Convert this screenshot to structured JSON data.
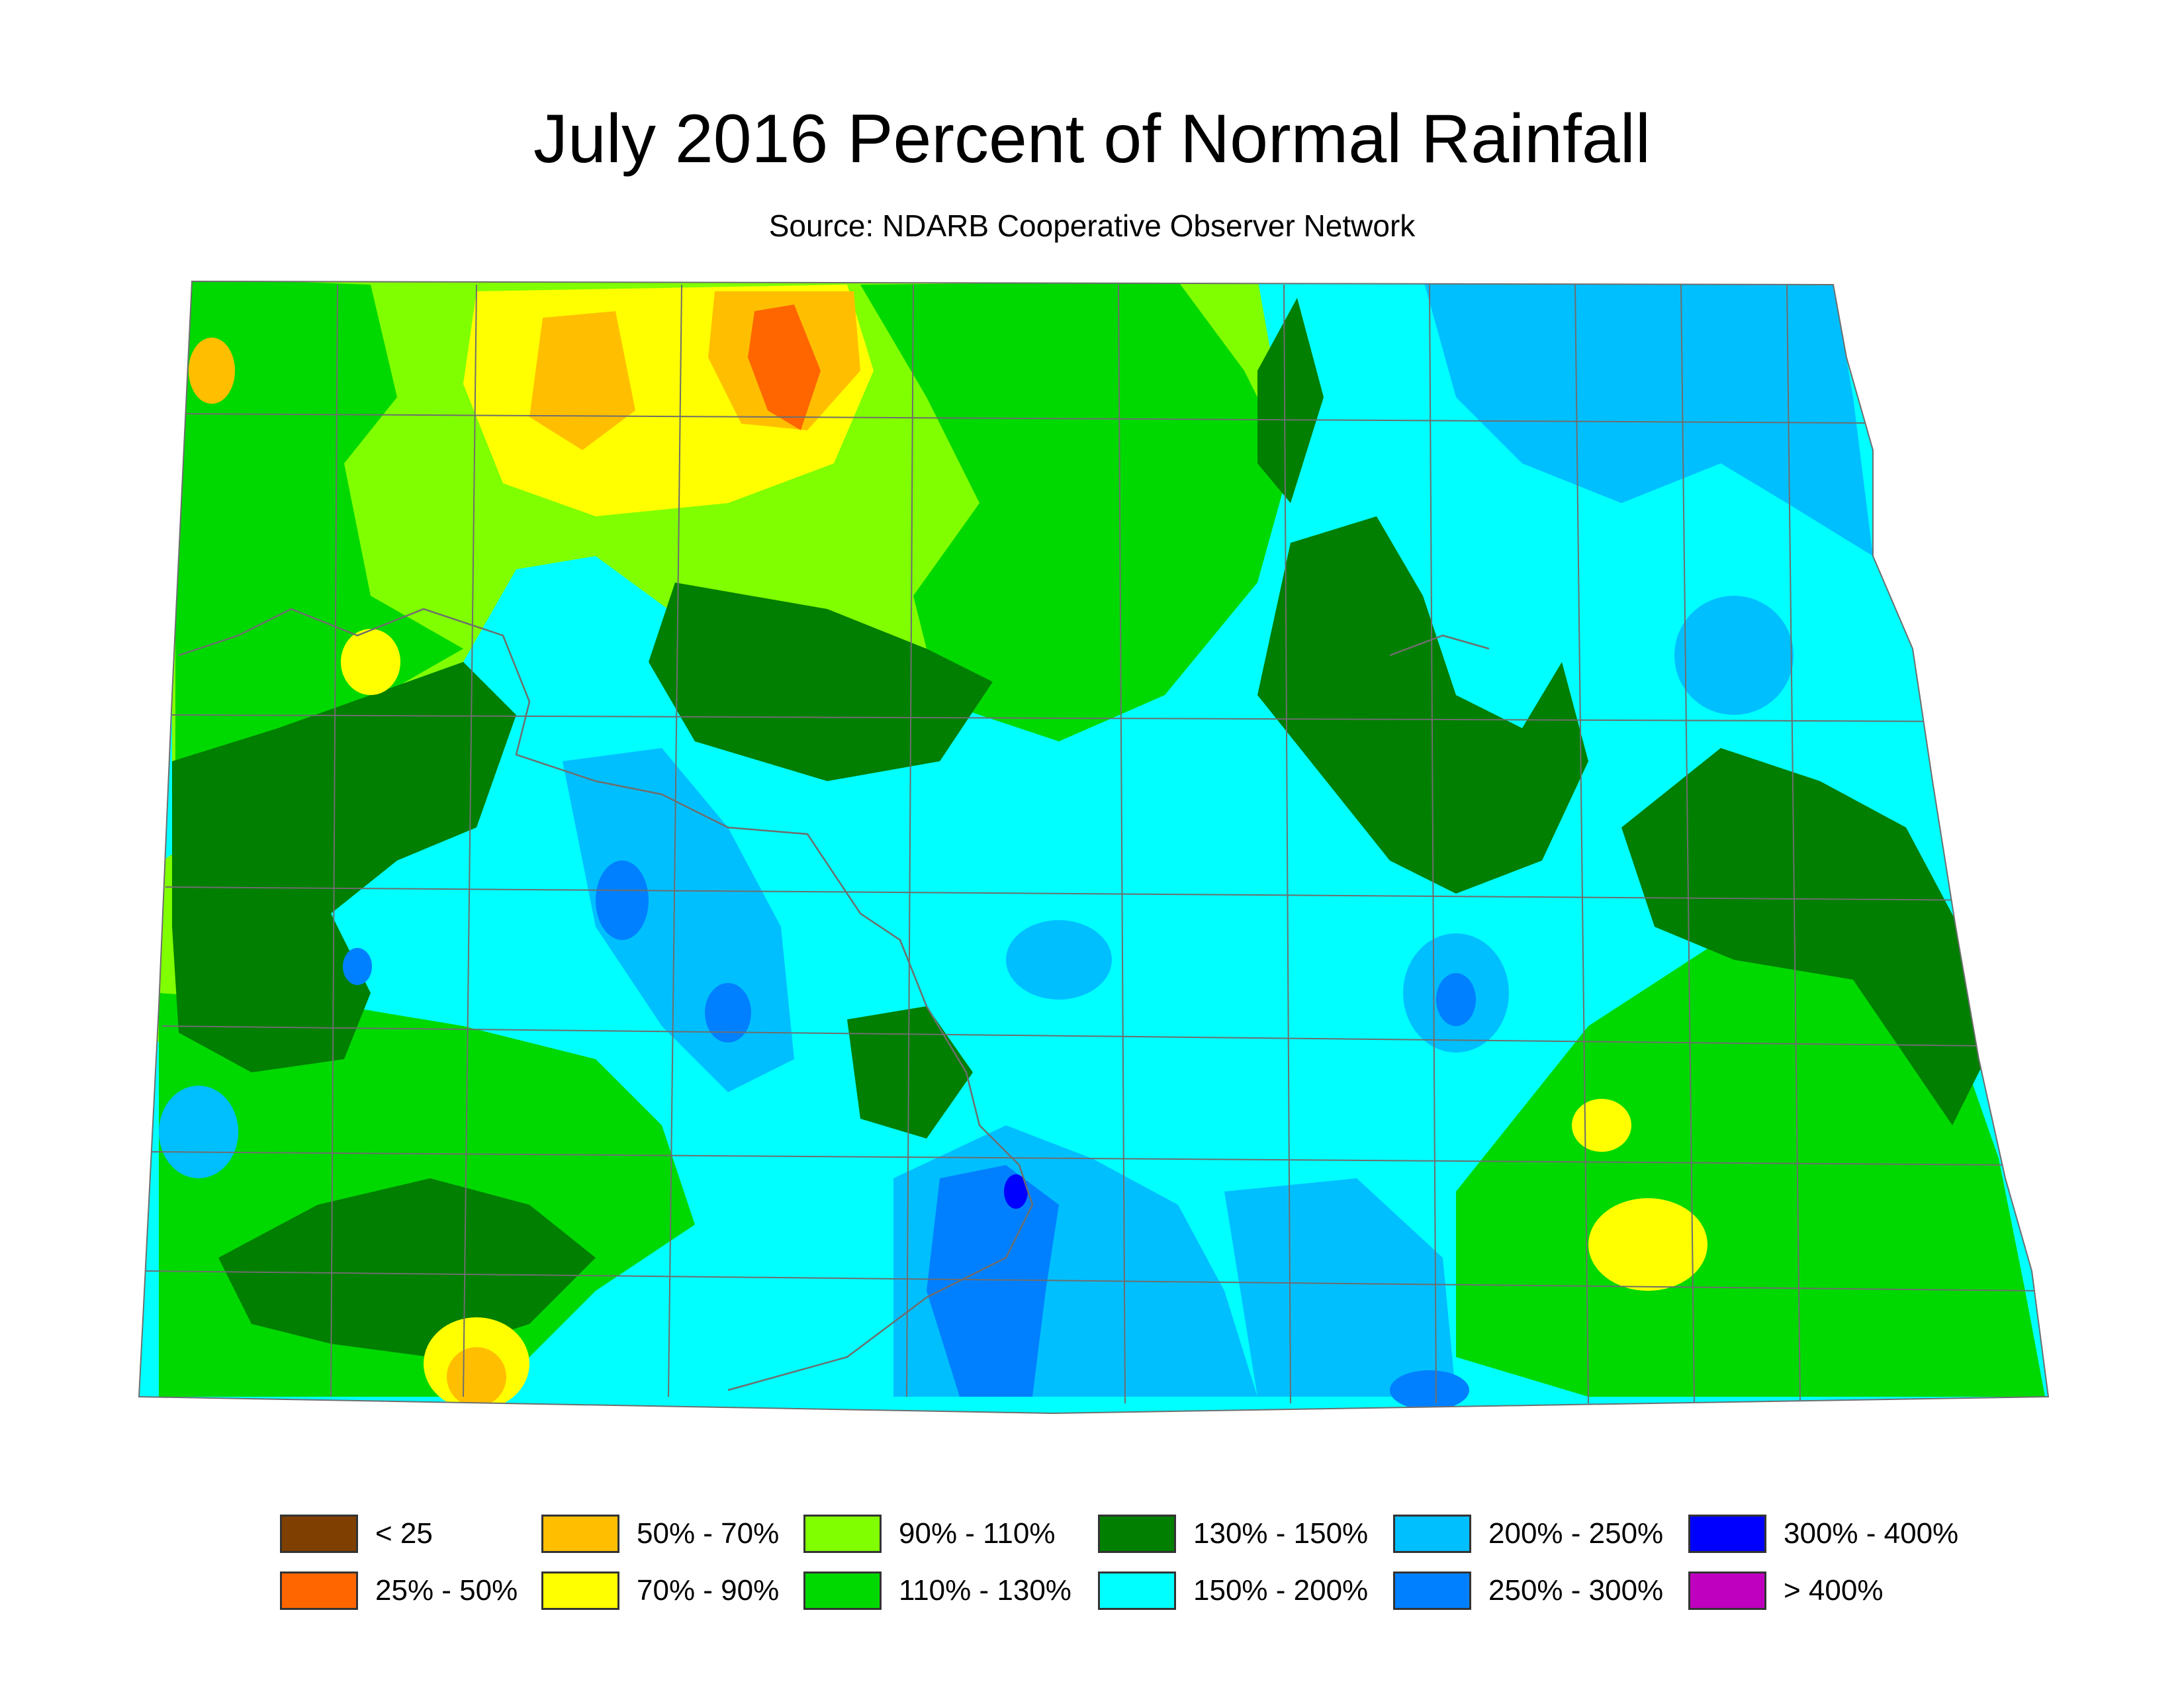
{
  "title": "July 2016 Percent of Normal Rainfall",
  "subtitle": "Source: NDARB Cooperative Observer Network",
  "legend": [
    {
      "label": "< 25",
      "color": "#7f3f00"
    },
    {
      "label": "25% - 50%",
      "color": "#ff6600"
    },
    {
      "label": "50% - 70%",
      "color": "#ffbf00"
    },
    {
      "label": "70% - 90%",
      "color": "#ffff00"
    },
    {
      "label": "90% - 110%",
      "color": "#80ff00"
    },
    {
      "label": "110% - 130%",
      "color": "#00d900"
    },
    {
      "label": "130% - 150%",
      "color": "#007f00"
    },
    {
      "label": "150% - 200%",
      "color": "#00ffff"
    },
    {
      "label": "200% - 250%",
      "color": "#00bfff"
    },
    {
      "label": "250% - 300%",
      "color": "#0080ff"
    },
    {
      "label": "300% - 400%",
      "color": "#0000ff"
    },
    {
      "label": "> 400%",
      "color": "#bf00bf"
    }
  ],
  "colors": {
    "county_lines": "#6e6e6e",
    "river_lines": "#6e6e6e",
    "background": "#ffffff"
  }
}
